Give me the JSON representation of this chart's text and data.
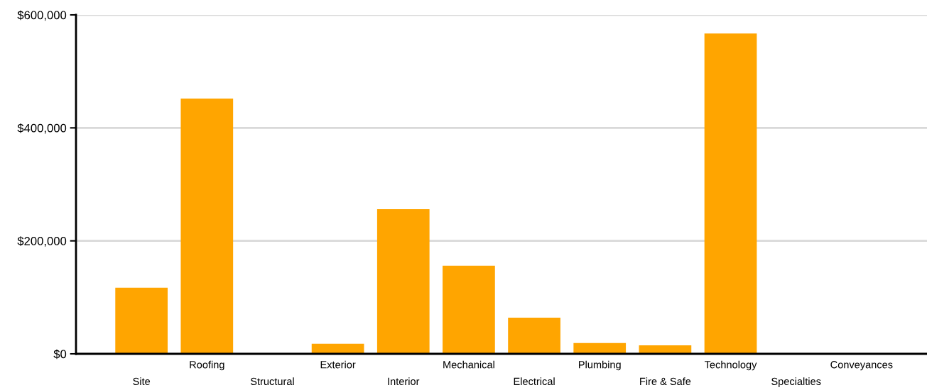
{
  "chart_data": {
    "type": "bar",
    "categories": [
      "Site",
      "Roofing",
      "Structural",
      "Exterior",
      "Interior",
      "Mechanical",
      "Electrical",
      "Plumbing",
      "Fire & Safe",
      "Technology",
      "Specialties",
      "Conveyances"
    ],
    "values": [
      117000,
      452000,
      0,
      18000,
      256000,
      156000,
      64000,
      19000,
      15000,
      567000,
      0,
      0
    ],
    "color": "#ffa500",
    "ylim": [
      0,
      600000
    ],
    "yticks": [
      {
        "value": 0,
        "label": "$0"
      },
      {
        "value": 200000,
        "label": "$200,000"
      },
      {
        "value": 400000,
        "label": "$400,000"
      },
      {
        "value": 600000,
        "label": "$600,000"
      }
    ],
    "grid": "y",
    "legend": false
  }
}
